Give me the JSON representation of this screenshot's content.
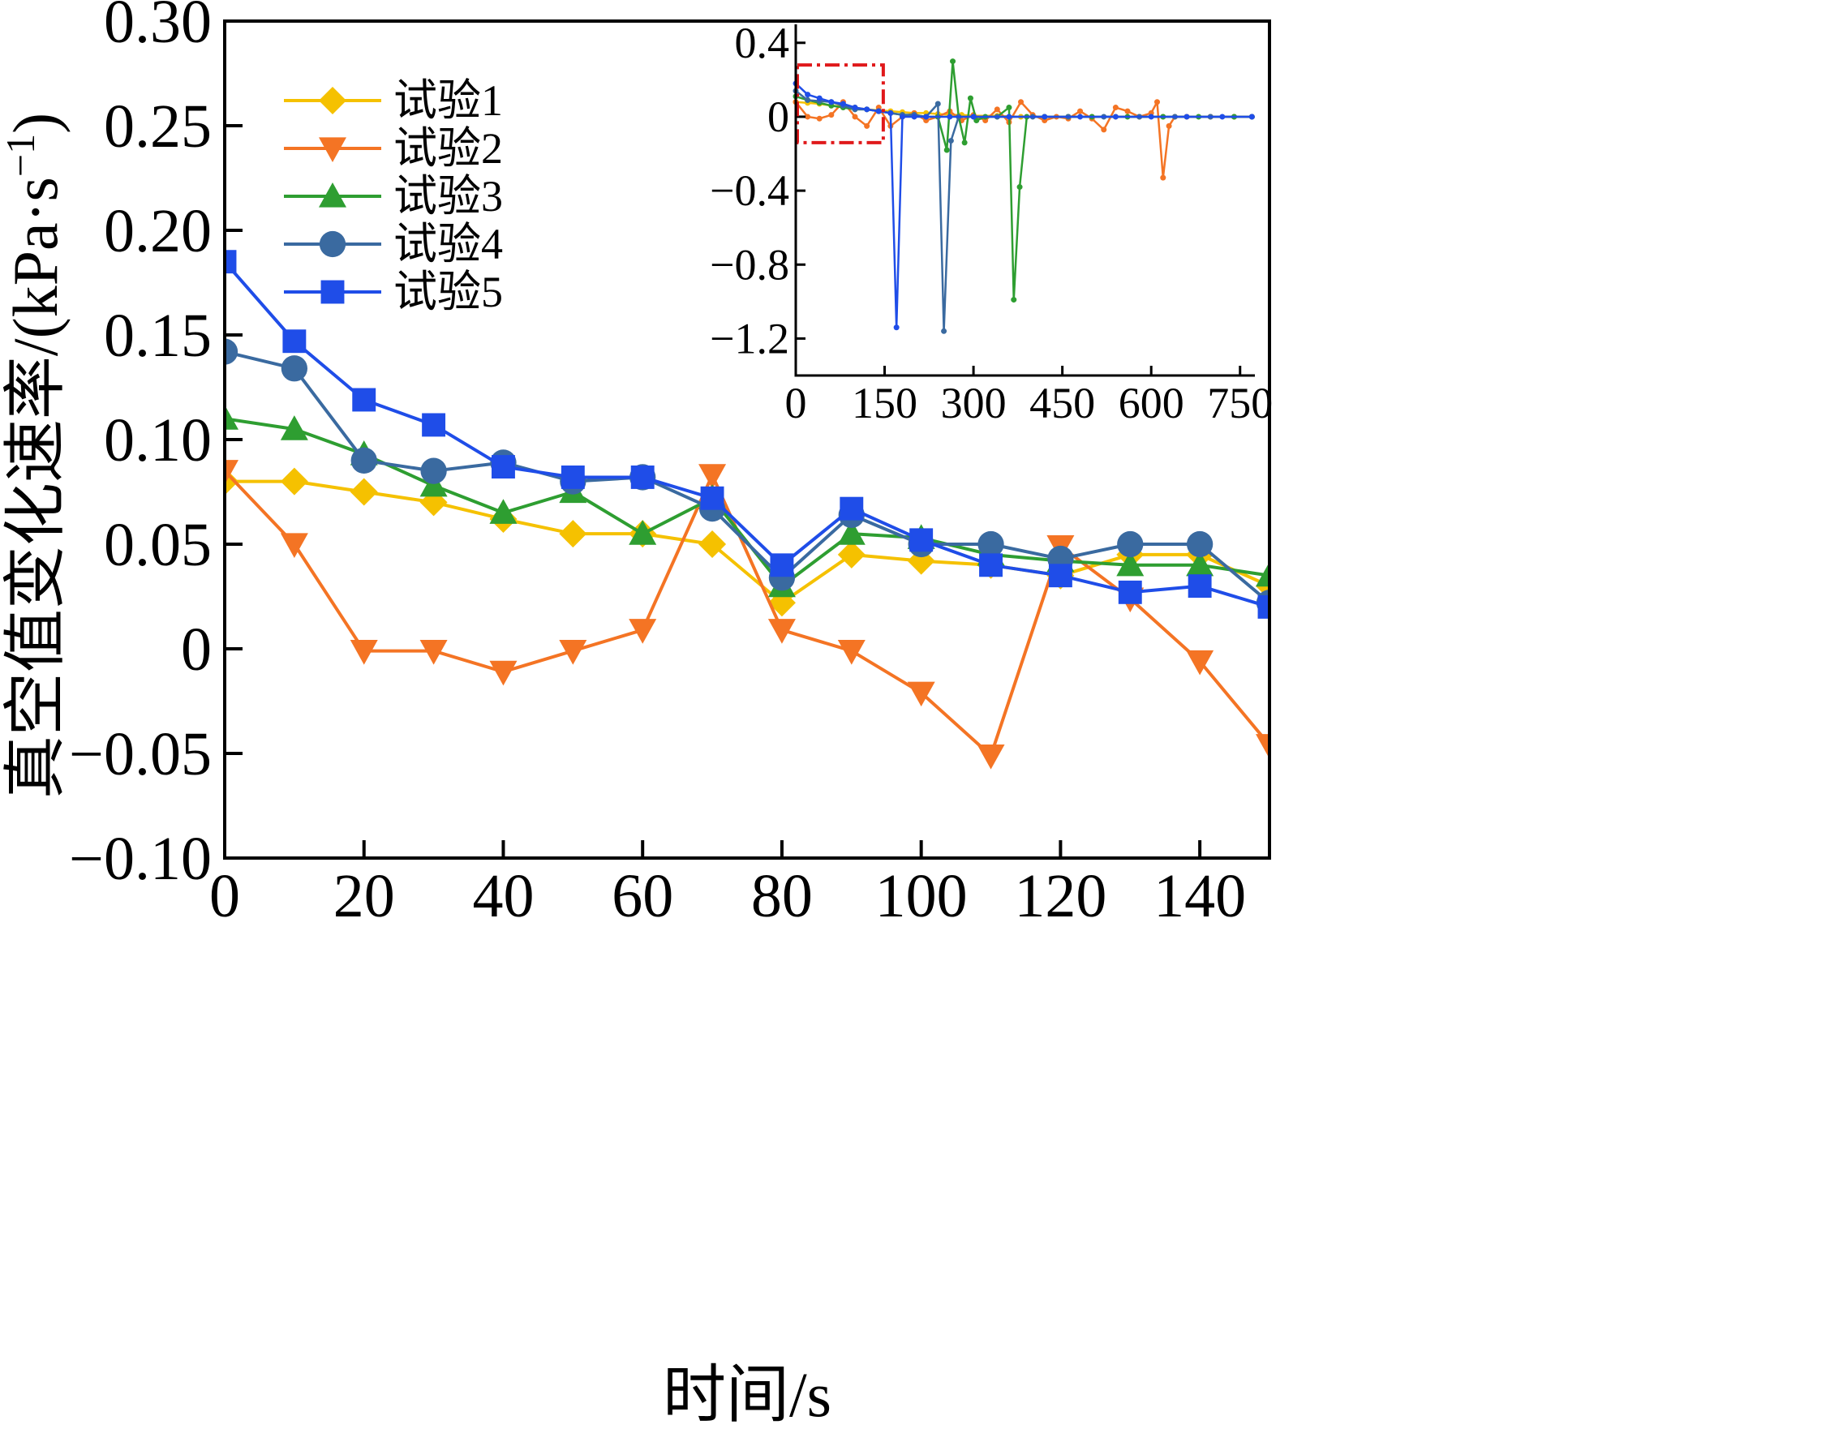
{
  "chart_data": {
    "type": "line",
    "title": "",
    "xlabel": "时间/s",
    "ylabel_text": "真空值变化速率/(kPa·s",
    "ylabel_sup": "−1",
    "ylabel_close": ")",
    "xlim": [
      0,
      150
    ],
    "ylim": [
      -0.1,
      0.3
    ],
    "xticks": [
      0,
      20,
      40,
      60,
      80,
      100,
      120,
      140
    ],
    "yticks": [
      -0.1,
      -0.05,
      0,
      0.05,
      0.1,
      0.15,
      0.2,
      0.25,
      0.3
    ],
    "xtick_labels": [
      "0",
      "20",
      "40",
      "60",
      "80",
      "100",
      "120",
      "140"
    ],
    "ytick_labels": [
      "−0.10",
      "−0.05",
      "0",
      "0.05",
      "0.10",
      "0.15",
      "0.20",
      "0.25",
      "0.30"
    ],
    "legend_position": "top-left",
    "x": [
      0,
      10,
      20,
      30,
      40,
      50,
      60,
      70,
      80,
      90,
      100,
      110,
      120,
      130,
      140,
      150
    ],
    "series": [
      {
        "name": "试验1",
        "color": "#f5c100",
        "marker": "diamond",
        "values": [
          0.08,
          0.08,
          0.075,
          0.07,
          0.062,
          0.055,
          0.055,
          0.05,
          0.022,
          0.045,
          0.042,
          0.04,
          0.035,
          0.045,
          0.045,
          0.03
        ]
      },
      {
        "name": "试验2",
        "color": "#f47424",
        "marker": "triangle-down",
        "values": [
          0.085,
          0.05,
          -0.001,
          -0.001,
          -0.011,
          -0.001,
          0.009,
          0.083,
          0.009,
          -0.001,
          -0.021,
          -0.051,
          0.049,
          0.024,
          -0.006,
          -0.046
        ]
      },
      {
        "name": "试验3",
        "color": "#2e9e31",
        "marker": "triangle-up",
        "values": [
          0.11,
          0.105,
          0.093,
          0.078,
          0.065,
          0.075,
          0.055,
          0.072,
          0.03,
          0.055,
          0.053,
          0.045,
          0.042,
          0.04,
          0.04,
          0.035
        ]
      },
      {
        "name": "试验4",
        "color": "#3a6aa0",
        "marker": "circle",
        "values": [
          0.142,
          0.134,
          0.09,
          0.085,
          0.089,
          0.08,
          0.082,
          0.067,
          0.034,
          0.064,
          0.05,
          0.05,
          0.043,
          0.05,
          0.05,
          0.022
        ]
      },
      {
        "name": "试验5",
        "color": "#1f4de8",
        "marker": "square",
        "values": [
          0.185,
          0.147,
          0.119,
          0.107,
          0.087,
          0.082,
          0.082,
          0.072,
          0.04,
          0.067,
          0.052,
          0.04,
          0.035,
          0.027,
          0.03,
          0.02
        ]
      }
    ],
    "inset": {
      "type": "line",
      "xlim": [
        0,
        775
      ],
      "ylim": [
        -1.4,
        0.5
      ],
      "xticks": [
        0,
        150,
        300,
        450,
        600,
        750
      ],
      "yticks": [
        0.4,
        0,
        -0.4,
        -0.8,
        -1.2
      ],
      "xtick_labels": [
        "0",
        "150",
        "300",
        "450",
        "600",
        "750"
      ],
      "ytick_labels": [
        "0.4",
        "0",
        "−0.4",
        "−0.8",
        "−1.2"
      ],
      "highlight_box": {
        "x": [
          0,
          145
        ],
        "y": [
          -0.14,
          0.28
        ],
        "color": "#e0191b",
        "meaning": "zoomed region shown in main plot"
      },
      "series": [
        {
          "name": "试验1",
          "color": "#f5c100",
          "x": [
            0,
            20,
            40,
            60,
            80,
            100,
            120,
            140,
            160,
            180,
            200,
            220,
            240,
            260,
            280,
            300,
            340,
            380,
            420,
            460,
            500,
            540,
            580,
            620,
            660,
            700,
            740,
            770
          ],
          "y": [
            0.08,
            0.075,
            0.07,
            0.06,
            0.055,
            0.05,
            0.04,
            0.035,
            0.03,
            0.025,
            0.02,
            0.02,
            0.015,
            0.01,
            0.01,
            0.005,
            0.005,
            0.0,
            0.0,
            0.0,
            0.0,
            0.0,
            0.0,
            0.0,
            0.0,
            0.0,
            0.0,
            0.0
          ]
        },
        {
          "name": "试验2",
          "color": "#f47424",
          "x": [
            0,
            20,
            40,
            60,
            80,
            100,
            120,
            140,
            160,
            180,
            200,
            220,
            240,
            260,
            280,
            300,
            320,
            340,
            360,
            380,
            400,
            420,
            440,
            460,
            480,
            500,
            520,
            540,
            560,
            580,
            600,
            610,
            620,
            630,
            640,
            660,
            700,
            740,
            770
          ],
          "y": [
            0.08,
            0.0,
            -0.01,
            0.01,
            0.08,
            0.0,
            -0.05,
            0.05,
            -0.05,
            0.0,
            0.02,
            -0.02,
            0.0,
            0.03,
            -0.02,
            0.01,
            -0.02,
            0.04,
            -0.03,
            0.08,
            0.01,
            -0.02,
            0.0,
            -0.01,
            0.03,
            -0.01,
            -0.07,
            0.05,
            0.03,
            0.0,
            0.02,
            0.08,
            -0.33,
            -0.05,
            0.0,
            0.0,
            0.0,
            0.0,
            0.0
          ]
        },
        {
          "name": "试验3",
          "color": "#2e9e31",
          "x": [
            0,
            20,
            40,
            60,
            80,
            100,
            120,
            140,
            160,
            180,
            200,
            220,
            240,
            255,
            265,
            275,
            285,
            295,
            305,
            320,
            340,
            360,
            368,
            378,
            390,
            420,
            460,
            500,
            560,
            620,
            680,
            740,
            770
          ],
          "y": [
            0.11,
            0.09,
            0.075,
            0.06,
            0.05,
            0.04,
            0.04,
            0.03,
            0.02,
            0.01,
            0.01,
            0.0,
            0.0,
            -0.18,
            0.3,
            0.0,
            -0.14,
            0.1,
            -0.02,
            0.0,
            0.0,
            0.05,
            -0.99,
            -0.38,
            0.0,
            0.0,
            0.0,
            0.0,
            0.0,
            0.0,
            0.0,
            0.0,
            0.0
          ]
        },
        {
          "name": "试验4",
          "color": "#3a6aa0",
          "x": [
            0,
            20,
            40,
            60,
            80,
            100,
            120,
            140,
            160,
            180,
            200,
            220,
            240,
            250,
            262,
            275,
            300,
            340,
            400,
            460,
            520,
            580,
            640,
            700,
            770
          ],
          "y": [
            0.14,
            0.09,
            0.085,
            0.08,
            0.06,
            0.04,
            0.04,
            0.03,
            0.02,
            0.01,
            0.01,
            0.0,
            0.07,
            -1.16,
            -0.13,
            0.0,
            0.0,
            0.0,
            0.0,
            0.0,
            0.0,
            0.0,
            0.0,
            0.0,
            0.0
          ]
        },
        {
          "name": "试验5",
          "color": "#1f4de8",
          "x": [
            0,
            20,
            40,
            60,
            80,
            100,
            120,
            140,
            160,
            170,
            180,
            200,
            220,
            260,
            300,
            360,
            420,
            480,
            540,
            600,
            660,
            720,
            770
          ],
          "y": [
            0.18,
            0.12,
            0.1,
            0.08,
            0.07,
            0.05,
            0.04,
            0.03,
            0.02,
            -1.14,
            0.0,
            0.0,
            0.0,
            0.0,
            0.0,
            0.0,
            0.0,
            0.0,
            0.0,
            0.0,
            0.0,
            0.0,
            0.0
          ]
        }
      ]
    }
  }
}
